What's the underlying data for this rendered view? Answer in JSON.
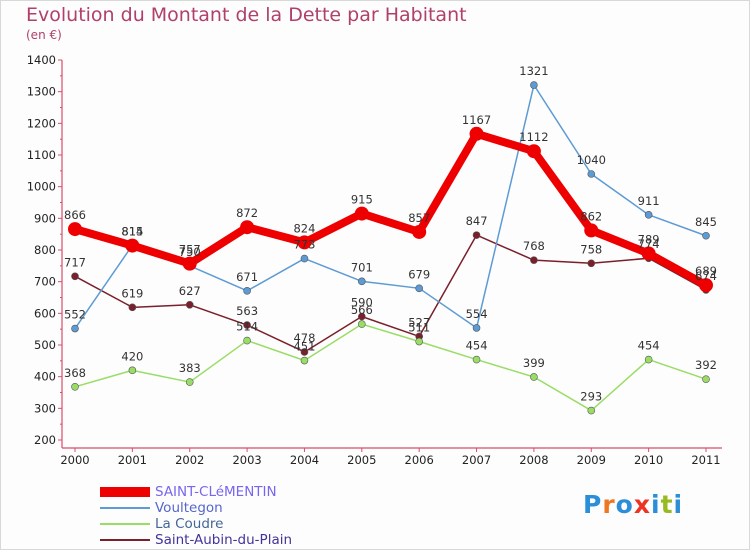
{
  "chart_data": {
    "type": "line",
    "title": "Evolution du Montant de la Dette par Habitant",
    "subtitle": "(en €)",
    "categories": [
      "2000",
      "2001",
      "2002",
      "2003",
      "2004",
      "2005",
      "2006",
      "2007",
      "2008",
      "2009",
      "2010",
      "2011"
    ],
    "ylim": [
      200,
      1400
    ],
    "yticks": [
      200,
      300,
      400,
      500,
      600,
      700,
      800,
      900,
      1000,
      1100,
      1200,
      1300,
      1400
    ],
    "grid": false,
    "legend_position": "bottom-left",
    "series": [
      {
        "name": "SAINT-CLéMENTIN",
        "color": "#ee0000",
        "values": [
          866,
          814,
          757,
          872,
          824,
          915,
          857,
          1167,
          1112,
          862,
          789,
          689
        ]
      },
      {
        "name": "Voultegon",
        "color": "#5d9bd5",
        "values": [
          552,
          815,
          750,
          671,
          773,
          701,
          679,
          554,
          1321,
          1040,
          911,
          845
        ]
      },
      {
        "name": "La Coudre",
        "color": "#99dd66",
        "values": [
          368,
          420,
          383,
          514,
          451,
          566,
          511,
          454,
          399,
          293,
          454,
          392
        ]
      },
      {
        "name": "Saint-Aubin-du-Plain",
        "color": "#7a1f2b",
        "values": [
          717,
          619,
          627,
          563,
          478,
          590,
          527,
          847,
          768,
          758,
          774,
          674
        ]
      }
    ]
  },
  "legend_label_colors": [
    "#7766ee",
    "#5566cc",
    "#446699",
    "#443399"
  ],
  "logo": {
    "letters": [
      "P",
      "r",
      "o",
      "x",
      "i",
      "t",
      "i"
    ],
    "colors": [
      "#2a8fd8",
      "#ee7722",
      "#2a8fd8",
      "#ee3322",
      "#2a8fd8",
      "#99bb22",
      "#2a8fd8"
    ]
  }
}
